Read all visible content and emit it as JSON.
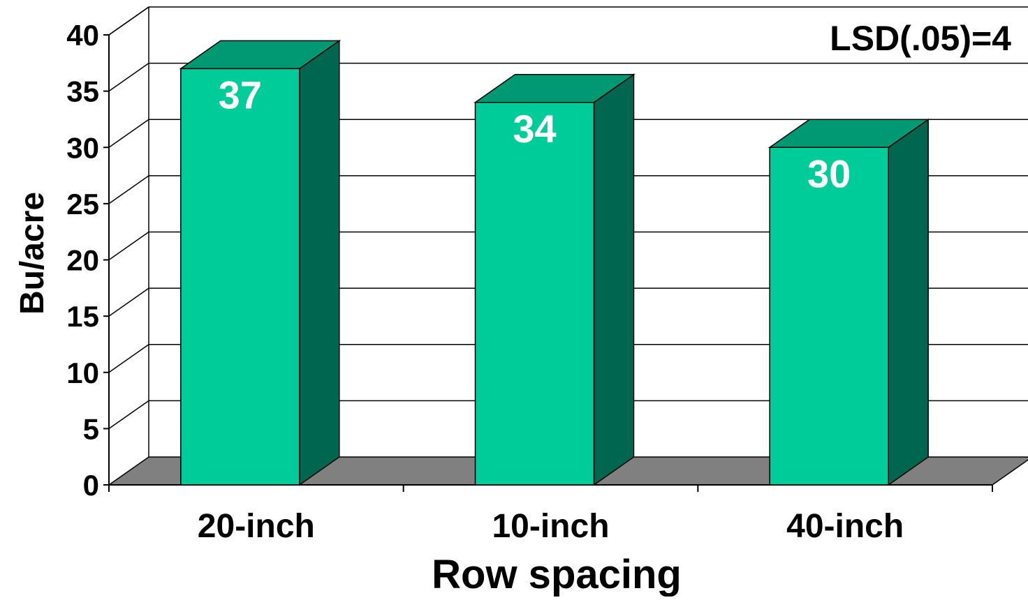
{
  "chart_data": {
    "type": "bar",
    "three_d": true,
    "categories": [
      "20-inch",
      "10-inch",
      "40-inch"
    ],
    "values": [
      37,
      34,
      30
    ],
    "data_labels": [
      "37",
      "34",
      "30"
    ],
    "xlabel": "Row spacing",
    "ylabel": "Bu/acre",
    "ylim": [
      0,
      40
    ],
    "ytick_step": 5,
    "yticks": [
      "0",
      "5",
      "10",
      "15",
      "20",
      "25",
      "30",
      "35",
      "40"
    ],
    "annotation": "LSD(.05)=4",
    "annotation_position": "top-right",
    "grid": true,
    "legend": false,
    "colors": {
      "bar_front": "#00CC99",
      "bar_top": "#009973",
      "bar_side": "#006650",
      "floor": "#808080",
      "data_label": "#ffffff",
      "text": "#000000",
      "gridline": "#000000"
    }
  }
}
